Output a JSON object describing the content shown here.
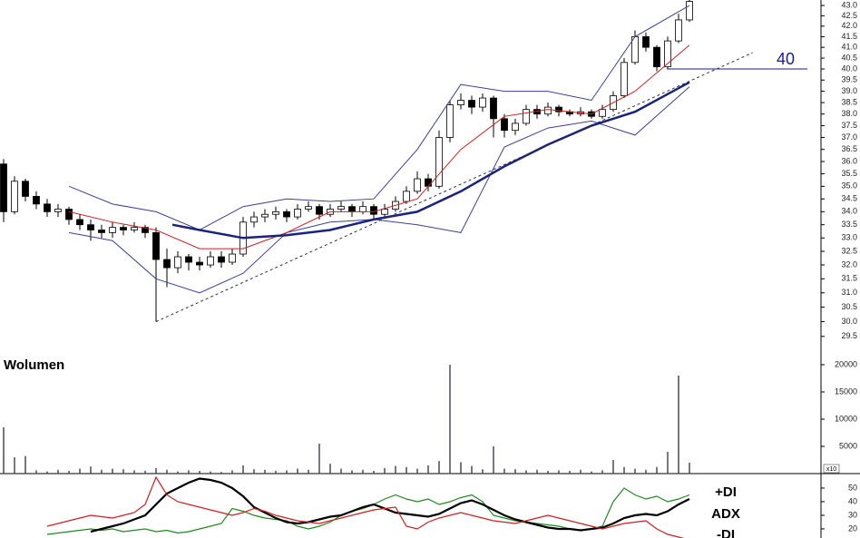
{
  "chart_data": [
    {
      "type": "candlestick",
      "log": true,
      "ylim": [
        29.07,
        43.27
      ],
      "yticks": [
        29.5,
        {
          "value": 30.0,
          "label": "30.0"
        },
        30.5,
        {
          "value": 31.0,
          "label": "31.0"
        },
        31.5,
        {
          "value": 32.0,
          "label": "32.0"
        },
        32.5,
        {
          "value": 33.0,
          "label": "33.0"
        },
        33.5,
        {
          "value": 34.0,
          "label": "34.0"
        },
        34.5,
        {
          "value": 35.0,
          "label": "35.0"
        },
        35.5,
        {
          "value": 36.0,
          "label": "36.0"
        },
        36.5,
        {
          "value": 37.0,
          "label": "37.0"
        },
        37.5,
        {
          "value": 38.0,
          "label": "38.0"
        },
        38.5,
        {
          "value": 39.0,
          "label": "39.0"
        },
        39.5,
        {
          "value": 40.0,
          "label": "40.0"
        },
        40.5,
        {
          "value": 41.0,
          "label": "41.0"
        },
        41.5,
        {
          "value": 42.0,
          "label": "42.0"
        },
        42.5,
        {
          "value": 43.0,
          "label": "43.0"
        }
      ],
      "up_color": "#ffffff",
      "down_color": "#000000",
      "open": [
        35.9,
        34.0,
        35.2,
        34.6,
        34.3,
        34.0,
        34.1,
        33.7,
        33.5,
        33.3,
        33.2,
        33.4,
        33.3,
        33.4,
        33.2,
        32.2,
        31.9,
        32.3,
        32.1,
        32.0,
        32.3,
        32.1,
        32.4,
        33.6,
        33.8,
        33.9,
        34.0,
        33.8,
        34.1,
        34.2,
        33.9,
        34.1,
        34.2,
        34.0,
        34.2,
        33.9,
        34.1,
        34.4,
        34.8,
        35.3,
        35.0,
        37.0,
        38.4,
        38.6,
        38.3,
        38.7,
        37.8,
        37.3,
        37.6,
        38.2,
        38.0,
        38.3,
        38.1,
        38.0,
        38.1,
        37.9,
        38.2,
        38.8,
        40.3,
        41.5,
        41.0,
        40.1,
        41.3,
        42.3
      ],
      "high": [
        36.1,
        35.4,
        35.3,
        34.8,
        34.5,
        34.3,
        34.2,
        33.9,
        33.7,
        33.5,
        33.6,
        33.5,
        33.6,
        33.5,
        33.4,
        32.6,
        32.5,
        32.4,
        32.3,
        32.5,
        32.5,
        32.6,
        33.8,
        34.0,
        34.1,
        34.2,
        34.1,
        34.3,
        34.4,
        34.3,
        34.3,
        34.4,
        34.3,
        34.4,
        34.3,
        34.3,
        34.6,
        35.0,
        35.6,
        35.5,
        37.3,
        38.6,
        38.9,
        38.8,
        38.9,
        38.8,
        38.0,
        37.8,
        38.4,
        38.4,
        38.5,
        38.4,
        38.2,
        38.3,
        38.2,
        38.4,
        39.0,
        40.5,
        41.8,
        41.7,
        41.1,
        41.5,
        42.6,
        43.4
      ],
      "low": [
        33.6,
        33.9,
        34.4,
        34.1,
        33.8,
        33.8,
        33.5,
        33.3,
        32.9,
        33.0,
        33.0,
        33.1,
        33.2,
        33.0,
        30.0,
        31.2,
        31.7,
        31.8,
        31.8,
        31.9,
        31.9,
        32.0,
        32.3,
        33.4,
        33.6,
        33.7,
        33.6,
        33.7,
        34.0,
        33.7,
        33.8,
        34.0,
        33.8,
        33.9,
        33.7,
        33.8,
        34.0,
        34.3,
        34.7,
        34.8,
        34.9,
        36.8,
        38.2,
        38.0,
        38.1,
        37.0,
        37.0,
        37.1,
        37.5,
        37.8,
        37.9,
        37.9,
        37.9,
        37.9,
        37.8,
        37.8,
        38.1,
        38.7,
        40.2,
        40.8,
        39.9,
        40.0,
        41.2,
        42.2
      ],
      "close": [
        34.0,
        35.2,
        34.6,
        34.3,
        34.0,
        34.1,
        33.7,
        33.5,
        33.3,
        33.2,
        33.4,
        33.3,
        33.4,
        33.2,
        32.2,
        31.9,
        32.3,
        32.1,
        32.0,
        32.3,
        32.1,
        32.4,
        33.6,
        33.8,
        33.9,
        34.0,
        33.8,
        34.1,
        34.2,
        33.9,
        34.1,
        34.2,
        34.0,
        34.2,
        33.9,
        34.1,
        34.4,
        34.8,
        35.3,
        35.0,
        37.0,
        38.4,
        38.6,
        38.3,
        38.7,
        37.8,
        37.3,
        37.6,
        38.2,
        38.0,
        38.3,
        38.1,
        38.0,
        38.1,
        37.9,
        38.2,
        38.8,
        40.3,
        41.5,
        41.0,
        40.1,
        41.3,
        42.3,
        43.2
      ],
      "overlays": [
        {
          "color": "#3b3f9e",
          "x": [
            6,
            10,
            14,
            18,
            22,
            26,
            30,
            34,
            38,
            42,
            46,
            50,
            54,
            58,
            63
          ],
          "values": [
            35.0,
            34.3,
            34.0,
            33.3,
            34.2,
            34.5,
            34.4,
            34.5,
            36.5,
            39.3,
            39.0,
            39.0,
            38.6,
            41.5,
            43.0
          ]
        },
        {
          "color": "#3b3f9e",
          "x": [
            6,
            10,
            14,
            18,
            22,
            26,
            30,
            34,
            38,
            42,
            46,
            50,
            54,
            58,
            63
          ],
          "values": [
            33.2,
            32.9,
            31.5,
            31.0,
            31.7,
            33.2,
            33.6,
            33.7,
            33.5,
            33.2,
            36.6,
            37.4,
            37.7,
            37.1,
            39.2
          ]
        },
        {
          "color": "#cc2020",
          "x": [
            6,
            10,
            14,
            18,
            22,
            26,
            30,
            34,
            38,
            42,
            46,
            50,
            54,
            58,
            63
          ],
          "values": [
            34.0,
            33.6,
            33.3,
            32.6,
            32.6,
            33.2,
            34.0,
            34.0,
            34.5,
            36.5,
            37.9,
            38.2,
            38.0,
            39.0,
            41.1
          ]
        },
        {
          "color": "#1a237e",
          "bold": true,
          "x": [
            15.5,
            18,
            22,
            26,
            30,
            34,
            38,
            42,
            46,
            50,
            54,
            58,
            63
          ],
          "values": [
            33.5,
            33.3,
            33.0,
            33.1,
            33.3,
            33.7,
            34.0,
            34.8,
            35.8,
            36.7,
            37.5,
            38.1,
            39.4
          ]
        },
        {
          "color": "#333333",
          "dashed": true,
          "x": [
            14,
            68.8
          ],
          "values": [
            30.0,
            40.75
          ]
        }
      ],
      "hline": 40,
      "hline_color": "#1a1aa0"
    },
    {
      "type": "bar",
      "title": "Wolumen",
      "scale_label": "x10",
      "color": "#4a4a5a",
      "ylim": [
        0,
        22000
      ],
      "yticks": [
        5000,
        10000,
        15000,
        20000
      ],
      "values": [
        8500,
        3000,
        3200,
        600,
        400,
        700,
        500,
        900,
        1300,
        700,
        900,
        800,
        600,
        500,
        1000,
        700,
        400,
        600,
        500,
        400,
        300,
        600,
        1500,
        800,
        700,
        500,
        600,
        900,
        700,
        5500,
        1800,
        900,
        600,
        700,
        500,
        1000,
        1400,
        1200,
        900,
        1500,
        2300,
        20000,
        2100,
        1400,
        800,
        5000,
        900,
        800,
        600,
        700,
        500,
        600,
        500,
        700,
        400,
        600,
        2500,
        1200,
        900,
        700,
        1200,
        4000,
        18000,
        2000
      ]
    },
    {
      "type": "line",
      "ylim": [
        13.3,
        59.3
      ],
      "yticks": [
        20,
        30,
        40,
        50
      ],
      "series": [
        {
          "name": "+DI",
          "color": "#1f8a1f",
          "values": [
            null,
            null,
            null,
            null,
            16,
            17,
            18,
            19,
            20,
            19,
            20,
            18,
            19,
            20,
            18,
            19,
            17,
            18,
            20,
            22,
            24,
            35,
            33,
            30,
            28,
            27,
            26,
            22,
            20,
            22,
            25,
            30,
            33,
            35,
            38,
            42,
            45,
            42,
            40,
            42,
            38,
            40,
            43,
            45,
            40,
            30,
            28,
            26,
            25,
            24,
            23,
            22,
            20,
            19,
            20,
            22,
            40,
            50,
            45,
            42,
            44,
            40,
            42,
            45
          ]
        },
        {
          "name": "ADX",
          "color": "#000000",
          "bold": true,
          "values": [
            null,
            null,
            null,
            null,
            null,
            null,
            null,
            null,
            18,
            20,
            22,
            24,
            27,
            30,
            38,
            46,
            50,
            54,
            57,
            56,
            54,
            50,
            44,
            36,
            32,
            28,
            25,
            24,
            25,
            27,
            29,
            30,
            33,
            36,
            38,
            35,
            32,
            31,
            30,
            29,
            31,
            35,
            39,
            41,
            38,
            34,
            30,
            27,
            25,
            23,
            21,
            20,
            20,
            19,
            20,
            21,
            24,
            28,
            30,
            31,
            30,
            33,
            38,
            42
          ]
        },
        {
          "name": "-DI",
          "color": "#cc2020",
          "values": [
            null,
            null,
            null,
            null,
            22,
            24,
            26,
            28,
            30,
            29,
            28,
            30,
            32,
            38,
            58,
            45,
            40,
            38,
            36,
            34,
            32,
            30,
            32,
            35,
            33,
            30,
            28,
            26,
            25,
            24,
            26,
            28,
            30,
            32,
            34,
            35,
            36,
            22,
            20,
            25,
            28,
            30,
            32,
            30,
            28,
            26,
            25,
            24,
            26,
            28,
            30,
            28,
            26,
            24,
            22,
            20,
            22,
            24,
            25,
            26,
            20,
            16,
            14,
            12
          ]
        }
      ]
    }
  ]
}
